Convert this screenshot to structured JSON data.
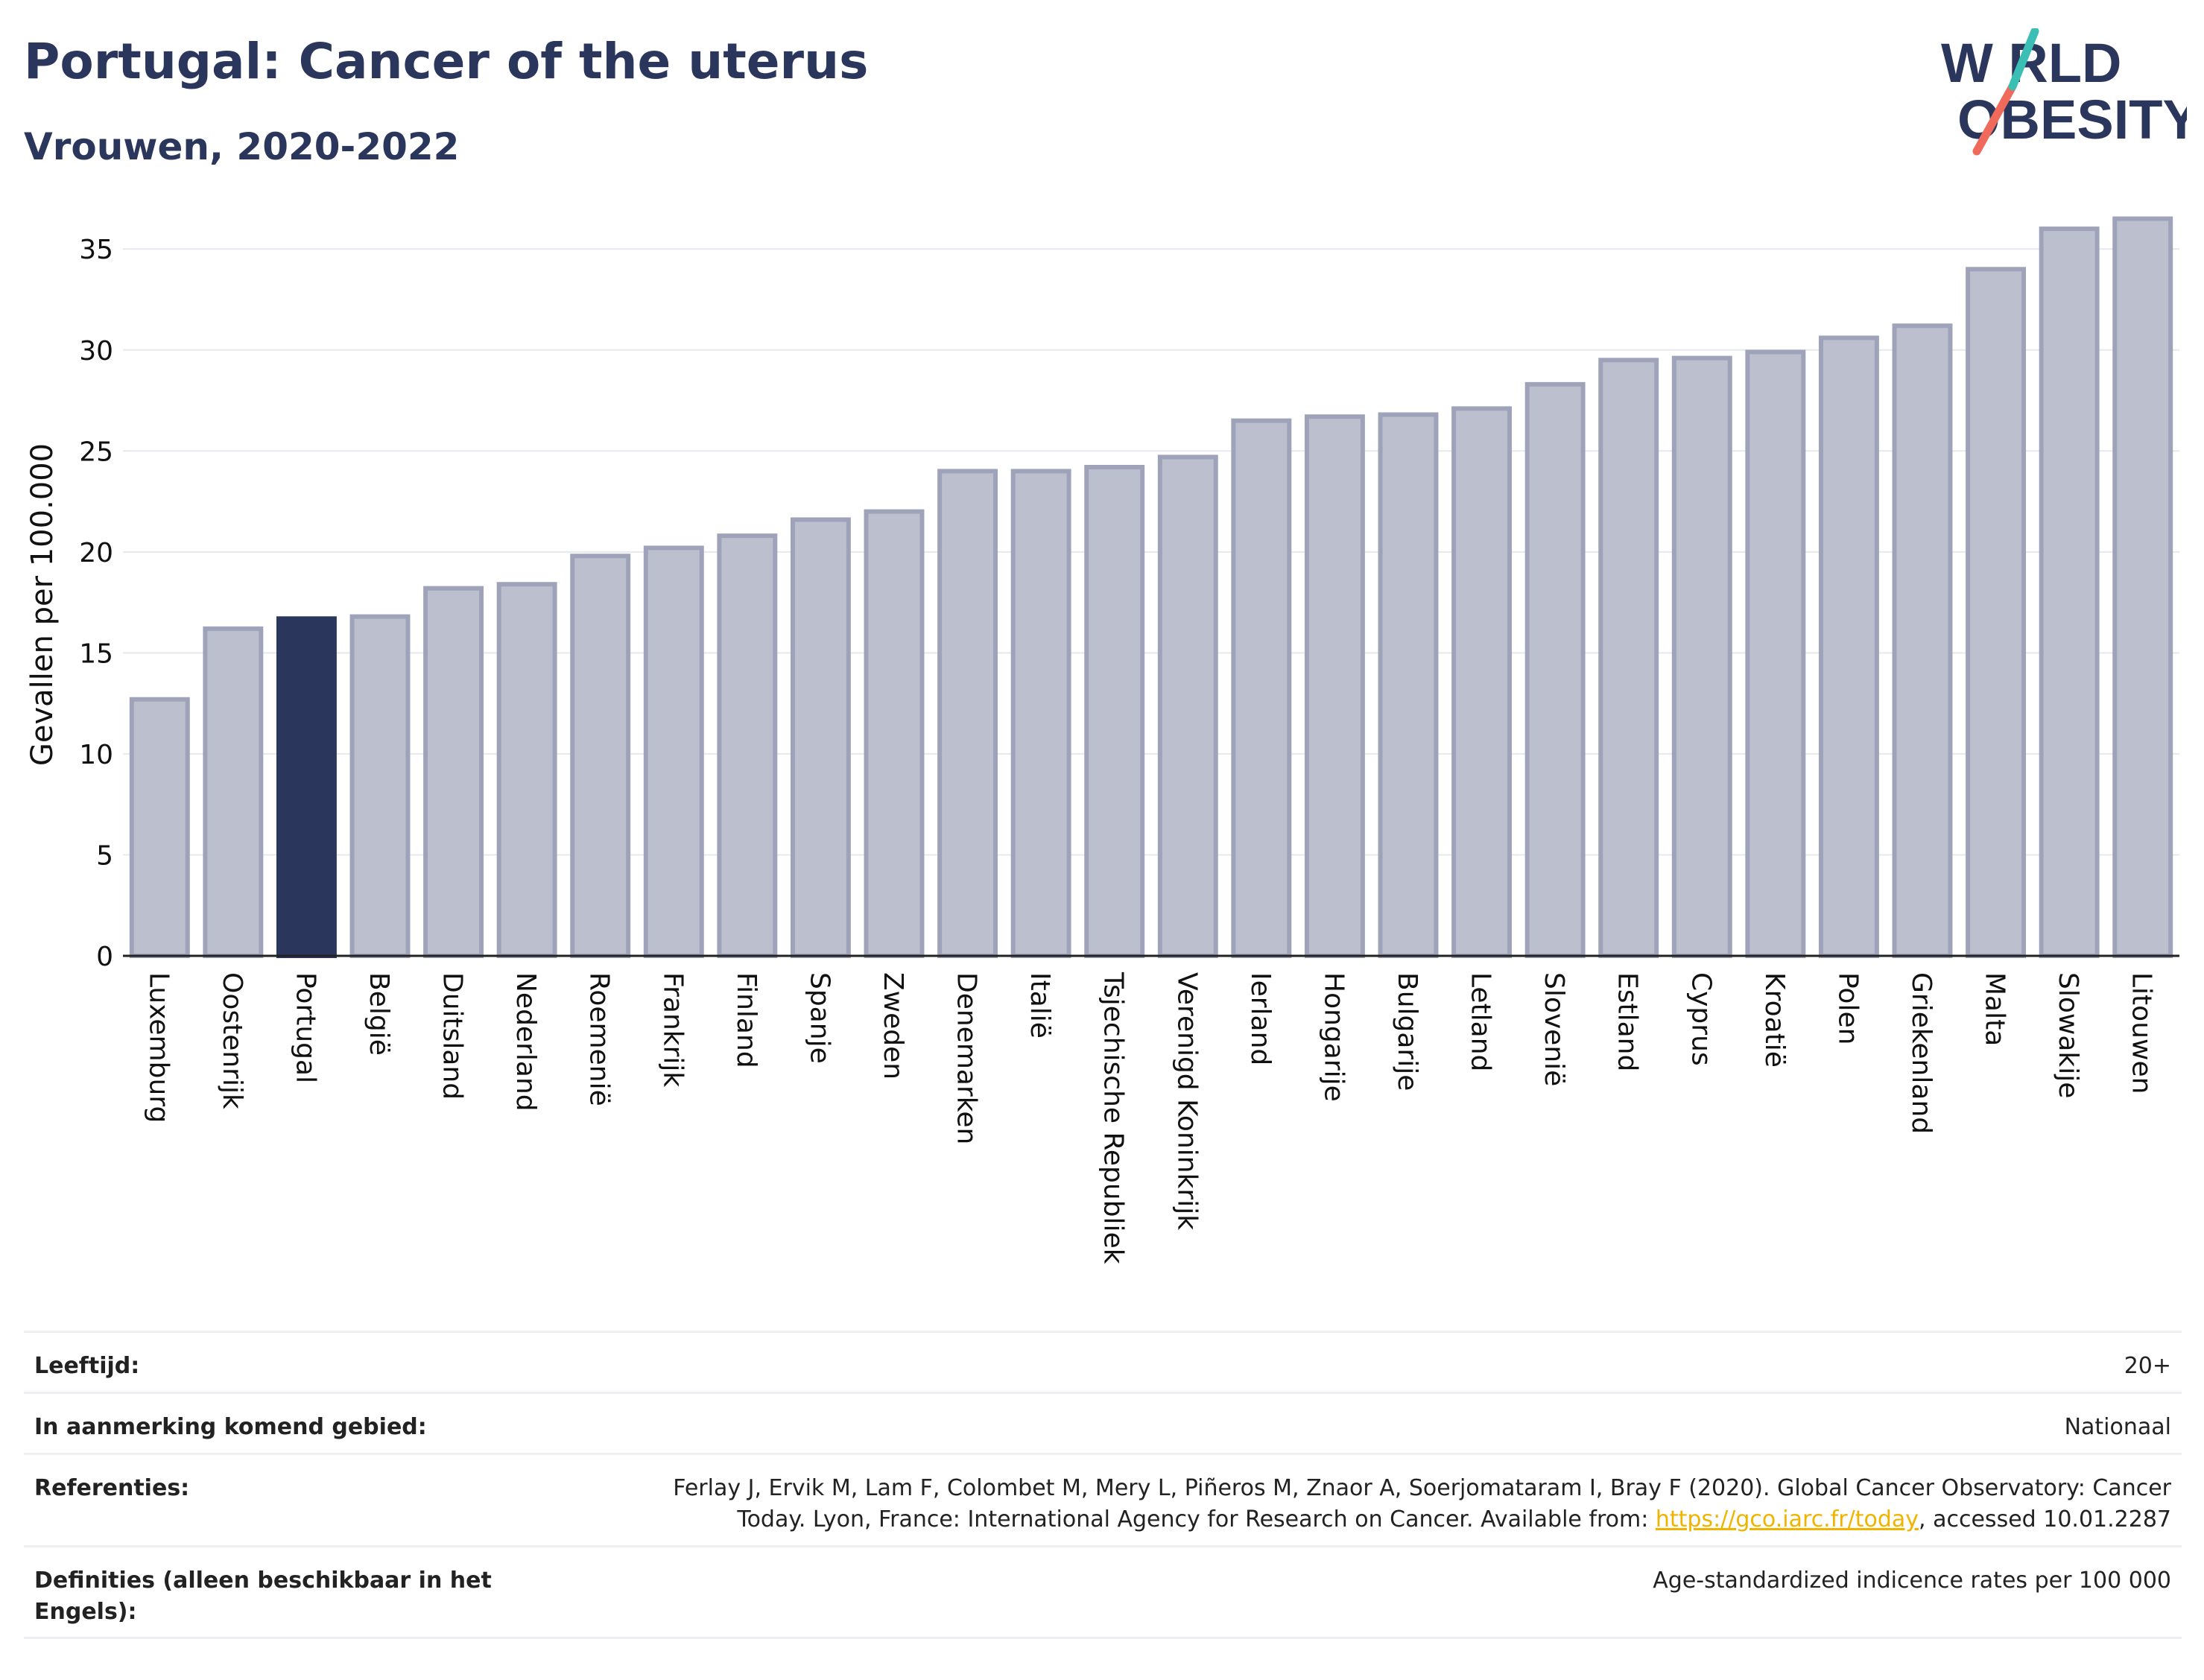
{
  "header": {
    "title": "Portugal: Cancer of the uterus",
    "subtitle": "Vrouwen, 2020-2022"
  },
  "logo": {
    "line1": "W RLD",
    "line2": "OBESITY",
    "text": "WORLD OBESITY"
  },
  "colors": {
    "title": "#2b365d",
    "bar_default": "#bcc0ce",
    "bar_default_stroke": "#9ea3b9",
    "bar_highlight": "#2b365d",
    "logo_teal": "#3bbfb4",
    "logo_coral": "#ef6a5a",
    "link": "#f0b400"
  },
  "chart_data": {
    "type": "bar",
    "ylabel": "Gevallen per 100.000",
    "ylim": [
      0,
      37
    ],
    "yticks": [
      0,
      5,
      10,
      15,
      20,
      25,
      30,
      35
    ],
    "grid": true,
    "highlight": "Portugal",
    "categories": [
      "Luxemburg",
      "Oostenrijk",
      "Portugal",
      "België",
      "Duitsland",
      "Nederland",
      "Roemenië",
      "Frankrijk",
      "Finland",
      "Spanje",
      "Zweden",
      "Denemarken",
      "Italië",
      "Tsjechische Republiek",
      "Verenigd Koninkrijk",
      "Ierland",
      "Hongarije",
      "Bulgarije",
      "Letland",
      "Slovenië",
      "Estland",
      "Cyprus",
      "Kroatië",
      "Polen",
      "Griekenland",
      "Malta",
      "Slowakije",
      "Litouwen"
    ],
    "values": [
      12.7,
      16.2,
      16.7,
      16.8,
      18.2,
      18.4,
      19.8,
      20.2,
      20.8,
      21.6,
      22.0,
      24.0,
      24.0,
      24.2,
      24.7,
      26.5,
      26.7,
      26.8,
      27.1,
      28.3,
      29.5,
      29.6,
      29.9,
      30.6,
      31.2,
      34.0,
      36.0,
      36.5
    ]
  },
  "meta": {
    "age_label": "Leeftijd:",
    "age_value": "20+",
    "area_label": "In aanmerking komend gebied:",
    "area_value": "Nationaal",
    "ref_label": "Referenties:",
    "ref_line1": "Ferlay J, Ervik M, Lam F, Colombet M, Mery L, Piñeros M, Znaor A, Soerjomataram I, Bray F (2020). Global Cancer Observatory: Cancer",
    "ref_line2_pre": "Today. Lyon, France: International Agency for Research on Cancer. Available from: ",
    "ref_link": "https://gco.iarc.fr/today",
    "ref_line2_post": ", accessed 10.01.2287",
    "def_label": "Definities (alleen beschikbaar in het Engels):",
    "def_value": "Age-standardized indicence rates per 100 000"
  }
}
